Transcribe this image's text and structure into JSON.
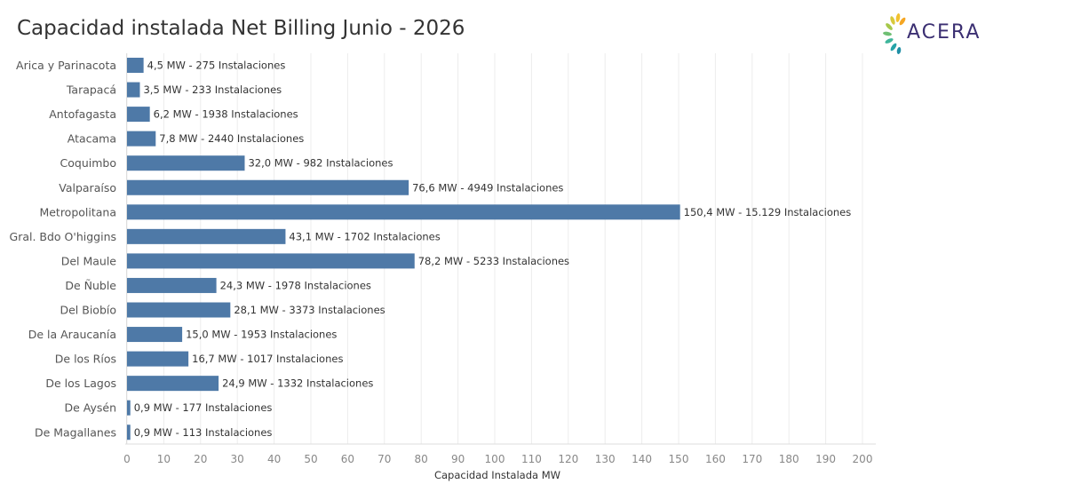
{
  "title": "Capacidad instalada Net Billing Junio - 2026",
  "logo": {
    "text": "ACERA",
    "icon": "sun-leaf-icon"
  },
  "colors": {
    "bar": "#4e79a7",
    "grid": "#ececec",
    "title": "#333333",
    "logo_text": "#3b2f72"
  },
  "chart_data": {
    "type": "bar",
    "orientation": "horizontal",
    "categories": [
      "Arica y Parinacota",
      "Tarapacá",
      "Antofagasta",
      "Atacama",
      "Coquimbo",
      "Valparaíso",
      "Metropolitana",
      "Gral. Bdo O'higgins",
      "Del Maule",
      "De Ñuble",
      "Del Biobío",
      "De la Araucanía",
      "De los Ríos",
      "De los Lagos",
      "De Aysén",
      "De Magallanes"
    ],
    "values": [
      4.5,
      3.5,
      6.2,
      7.8,
      32.0,
      76.6,
      150.4,
      43.1,
      78.2,
      24.3,
      28.1,
      15.0,
      16.7,
      24.9,
      0.9,
      0.9
    ],
    "data_labels": [
      "4,5 MW -  275 Instalaciones",
      "3,5 MW -  233 Instalaciones",
      "6,2 MW -  1938 Instalaciones",
      "7,8 MW -  2440 Instalaciones",
      "32,0 MW -  982 Instalaciones",
      "76,6 MW -  4949 Instalaciones",
      "150,4 MW -  15.129 Instalaciones",
      "43,1 MW -  1702 Instalaciones",
      "78,2 MW -  5233 Instalaciones",
      "24,3 MW -  1978 Instalaciones",
      "28,1 MW -  3373 Instalaciones",
      "15,0 MW -  1953 Instalaciones",
      "16,7 MW -  1017 Instalaciones",
      "24,9 MW -  1332 Instalaciones",
      "0,9 MW -  177 Instalaciones",
      "0,9 MW -  113 Instalaciones"
    ],
    "xlabel": "Capacidad Instalada MW",
    "ylabel": "",
    "xlim": [
      0,
      200
    ],
    "xticks": [
      0,
      10,
      20,
      30,
      40,
      50,
      60,
      70,
      80,
      90,
      100,
      110,
      120,
      130,
      140,
      150,
      160,
      170,
      180,
      190,
      200
    ],
    "grid": "vertical"
  }
}
